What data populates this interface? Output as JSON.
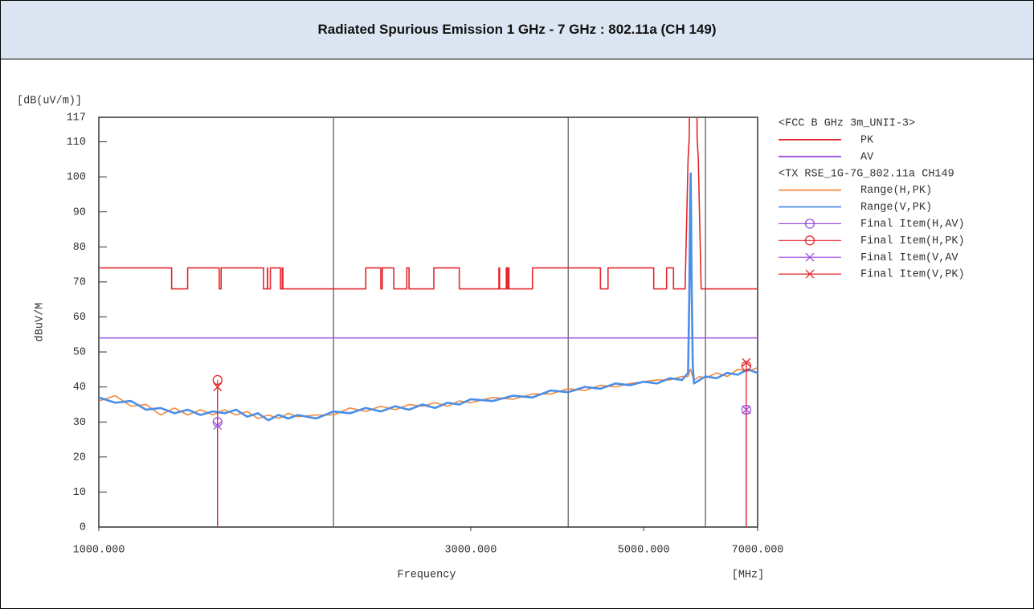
{
  "chart_data": {
    "type": "emission",
    "title": "Radiated Spurious Emission 1 GHz - 7 GHz : 802.11a (CH 149)",
    "y_unit": "[dB(uV/m)]",
    "y_label": "dBuV/M",
    "x_label": "Frequency",
    "x_unit": "[MHz]",
    "xscale": "log",
    "xlim": [
      1000,
      7000
    ],
    "xticks": [
      {
        "value": 1000,
        "label": "1000.000"
      },
      {
        "value": 3000,
        "label": "3000.000"
      },
      {
        "value": 5000,
        "label": "5000.000"
      },
      {
        "value": 7000,
        "label": "7000.000"
      }
    ],
    "xgrid": [
      2000,
      4000,
      6000
    ],
    "ylim": [
      0,
      117
    ],
    "yticks": [
      0,
      10,
      20,
      30,
      40,
      50,
      60,
      70,
      80,
      90,
      100,
      110,
      117
    ],
    "groups": [
      {
        "title": "<FCC B GHz 3m_UNII-3>",
        "series": [
          {
            "name": "PK",
            "kind": "line",
            "color": "#e3262b",
            "x": [
              1000,
              1240,
              1240,
              1300,
              1300,
              1427,
              1427,
              1435,
              1435,
              1626.5,
              1626.5,
              1645.5,
              1645.5,
              1646.5,
              1646.5,
              1660,
              1660,
              1710,
              1710,
              1718.8,
              1718.8,
              1722.2,
              1722.2,
              2200,
              2200,
              2300,
              2300,
              2310,
              2310,
              2390,
              2390,
              2483.5,
              2483.5,
              2500,
              2500,
              2690,
              2690,
              2900,
              2900,
              3260,
              3260,
              3267,
              3267,
              3332,
              3332,
              3339,
              3339,
              3345.8,
              3345.8,
              3358,
              3358,
              3600,
              3600,
              4400,
              4400,
              4500,
              4500,
              5150,
              5150,
              5350,
              5350,
              5460,
              5460,
              5650,
              5700,
              5720,
              5725,
              5850,
              5855,
              5875,
              5925,
              7000
            ],
            "values": [
              74,
              74,
              68,
              68,
              74,
              74,
              68,
              68,
              74,
              74,
              68,
              68,
              74,
              74,
              68,
              68,
              74,
              74,
              68,
              68,
              74,
              74,
              68,
              68,
              74,
              74,
              68,
              68,
              74,
              74,
              68,
              68,
              74,
              74,
              68,
              68,
              74,
              74,
              68,
              68,
              74,
              74,
              68,
              68,
              74,
              74,
              68,
              68,
              74,
              74,
              68,
              68,
              74,
              74,
              68,
              68,
              74,
              74,
              68,
              68,
              74,
              74,
              68,
              68,
              105,
              111,
              122,
              122,
              111,
              105,
              68,
              68
            ]
          },
          {
            "name": "AV",
            "kind": "line",
            "color": "#9b4fe0",
            "x": [
              1000,
              7000
            ],
            "values": [
              54,
              54
            ]
          }
        ]
      },
      {
        "title": "<TX RSE_1G-7G_802.11a CH149",
        "series": [
          {
            "name": "Range(H,PK)",
            "kind": "line",
            "color": "#f08a3c",
            "x": [
              1000,
              1050,
              1100,
              1150,
              1200,
              1250,
              1300,
              1350,
              1400,
              1450,
              1500,
              1550,
              1600,
              1650,
              1700,
              1750,
              1800,
              1900,
              2000,
              2100,
              2200,
              2300,
              2400,
              2500,
              2600,
              2700,
              2800,
              2900,
              3000,
              3200,
              3400,
              3600,
              3800,
              4000,
              4200,
              4400,
              4600,
              4800,
              5000,
              5200,
              5400,
              5600,
              5700,
              5720,
              5735,
              5745,
              5760,
              5780,
              5800,
              5900,
              6000,
              6200,
              6400,
              6600,
              6800,
              7000
            ],
            "values": [
              36,
              37.5,
              34.5,
              35,
              32,
              34,
              32,
              33.5,
              32,
              33.5,
              32,
              33,
              31,
              32,
              31,
              32.5,
              31.5,
              32,
              32,
              34,
              33,
              34.5,
              33.5,
              35,
              34.5,
              35.5,
              34.5,
              36,
              35.5,
              37,
              36.5,
              38,
              38,
              39.5,
              39,
              40.5,
              40,
              41,
              41.5,
              42,
              42,
              43,
              43,
              44,
              45,
              45,
              44,
              43,
              42,
              43,
              42.5,
              44,
              43,
              45,
              44.5,
              45.5
            ]
          },
          {
            "name": "Range(V,PK)",
            "kind": "line",
            "color": "#4a8ee8",
            "x": [
              1000,
              1050,
              1100,
              1150,
              1200,
              1250,
              1300,
              1350,
              1400,
              1450,
              1500,
              1550,
              1600,
              1650,
              1700,
              1750,
              1800,
              1900,
              2000,
              2100,
              2200,
              2300,
              2400,
              2500,
              2600,
              2700,
              2800,
              2900,
              3000,
              3200,
              3400,
              3600,
              3800,
              4000,
              4200,
              4400,
              4600,
              4800,
              5000,
              5200,
              5400,
              5600,
              5700,
              5720,
              5735,
              5745,
              5760,
              5780,
              5800,
              5900,
              6000,
              6200,
              6400,
              6600,
              6800,
              7000
            ],
            "values": [
              37,
              35.5,
              36,
              33.5,
              34,
              32.5,
              33.5,
              32,
              33,
              32.5,
              33.5,
              31.5,
              32.5,
              30.5,
              32,
              31,
              32,
              31,
              33,
              32.5,
              34,
              33,
              34.5,
              33.5,
              35,
              34,
              35.5,
              35,
              36.5,
              36,
              37.5,
              37,
              39,
              38.5,
              40,
              39.5,
              41,
              40.5,
              41.5,
              41,
              42.5,
              42,
              44,
              65,
              92,
              101,
              70,
              46,
              41,
              42,
              43,
              42.5,
              44,
              43.5,
              45,
              44
            ]
          },
          {
            "name": "Final Item(H,AV)",
            "kind": "marker",
            "marker": "circle",
            "color": "#9b4fe0",
            "x": [
              1420,
              6770
            ],
            "values": [
              30,
              33.5
            ]
          },
          {
            "name": "Final Item(H,PK)",
            "kind": "marker",
            "marker": "circle",
            "color": "#e3262b",
            "x": [
              1420,
              6770
            ],
            "values": [
              42,
              46
            ]
          },
          {
            "name": "Final Item(V,AV",
            "kind": "marker",
            "marker": "x",
            "color": "#9b4fe0",
            "x": [
              1420,
              6770
            ],
            "values": [
              29,
              33.5
            ]
          },
          {
            "name": "Final Item(V,PK)",
            "kind": "marker",
            "marker": "x",
            "color": "#e3262b",
            "x": [
              1420,
              6770
            ],
            "values": [
              40,
              47
            ]
          }
        ]
      }
    ]
  }
}
